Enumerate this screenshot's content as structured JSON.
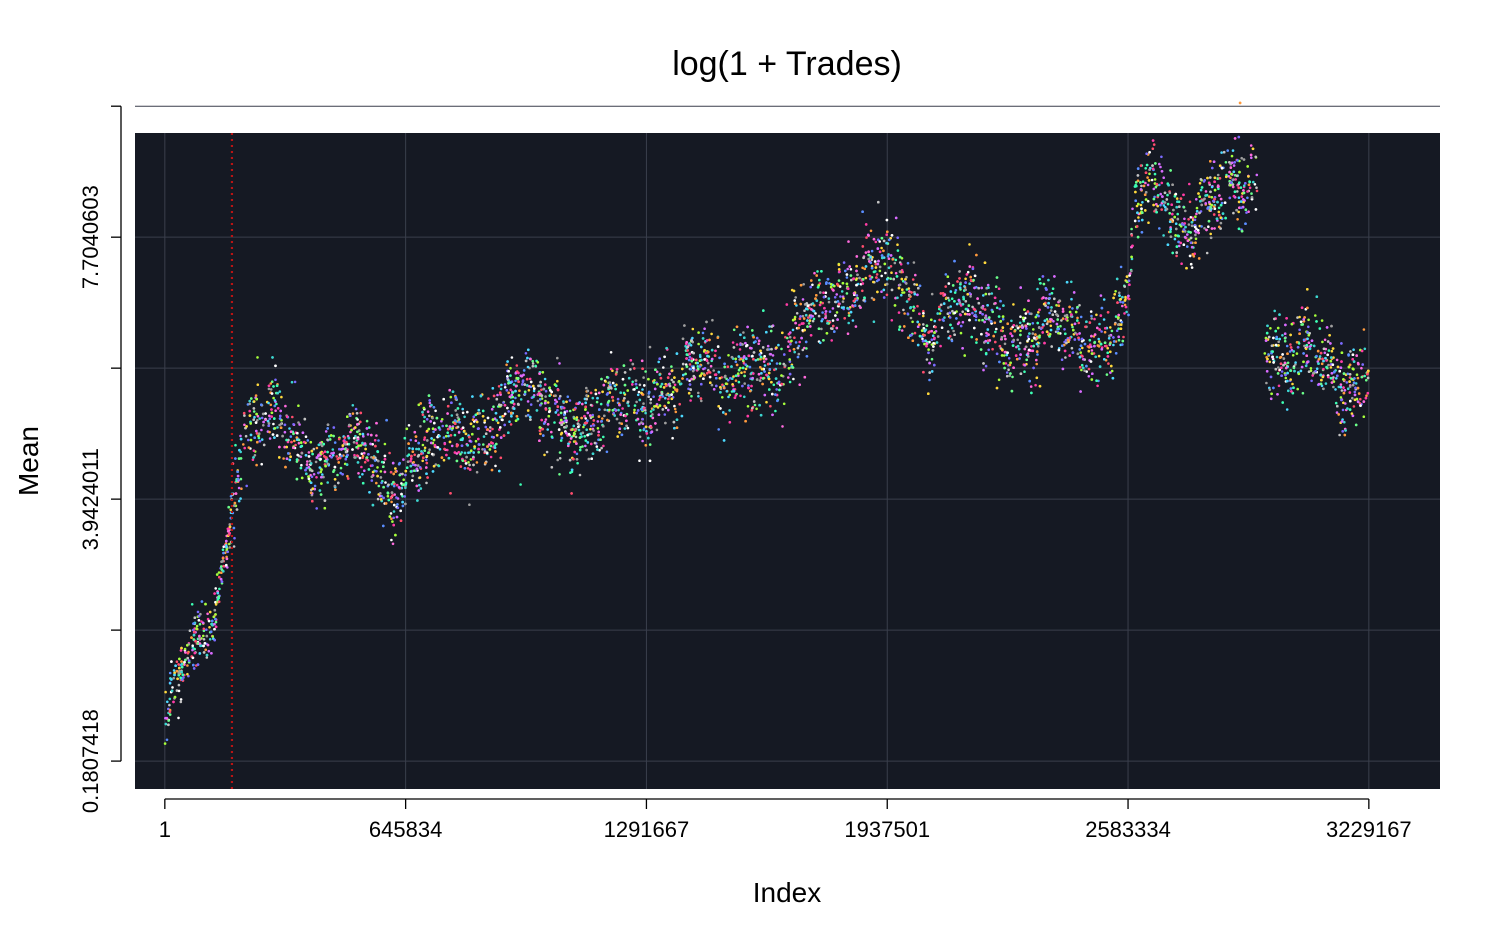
{
  "chart_data": {
    "type": "scatter",
    "title": "log(1 + Trades)",
    "xlabel": "Index",
    "ylabel": "Mean",
    "xlim": [
      -80000,
      3420000
    ],
    "ylim": [
      -0.22,
      9.2
    ],
    "x_ticks": [
      1,
      645834,
      1291667,
      1937501,
      2583334,
      3229167
    ],
    "x_tick_labels": [
      "1",
      "645834",
      "1291667",
      "1937501",
      "2583334",
      "3229167"
    ],
    "y_ticks": [
      0.1807418,
      2.0615715,
      3.9424011,
      5.8232307,
      7.7040603,
      9.58489
    ],
    "y_tick_labels": [
      "0.1807418",
      "",
      "3.9424011",
      "",
      "7.7040603",
      ""
    ],
    "grid": true,
    "plot_background": "#151923",
    "grid_color": "#3a3f4c",
    "vline": {
      "x": 180000,
      "color": "#b81414",
      "style": "dotted"
    },
    "series": [
      {
        "point_count": 6400,
        "color_palette": [
          "#ff4d6d",
          "#ffd93d",
          "#6bff8a",
          "#4dd9ff",
          "#7b6bff",
          "#ff6bde",
          "#c4c4c4",
          "#ffffff",
          "#3dffb4",
          "#ff9a3d",
          "#a6ff3d",
          "#5a8dff",
          "#d96bff",
          "#3dd6d0",
          "#ff3da6",
          "#9e9e9e"
        ],
        "trend": [
          [
            1,
            0.6
          ],
          [
            30000,
            1.2
          ],
          [
            60000,
            1.5
          ],
          [
            100000,
            1.8
          ],
          [
            130000,
            2.3
          ],
          [
            160000,
            3.2
          ],
          [
            180000,
            4.1
          ],
          [
            200000,
            4.6
          ],
          [
            240000,
            5.0
          ],
          [
            280000,
            5.0
          ],
          [
            320000,
            4.8
          ],
          [
            380000,
            4.7
          ],
          [
            440000,
            4.6
          ],
          [
            500000,
            4.6
          ],
          [
            560000,
            4.4
          ],
          [
            600000,
            4.2
          ],
          [
            630000,
            4.1
          ],
          [
            660000,
            4.8
          ],
          [
            720000,
            4.7
          ],
          [
            800000,
            4.7
          ],
          [
            880000,
            5.2
          ],
          [
            950000,
            5.5
          ],
          [
            1000000,
            5.2
          ],
          [
            1100000,
            5.1
          ],
          [
            1200000,
            5.1
          ],
          [
            1280000,
            5.3
          ],
          [
            1350000,
            5.7
          ],
          [
            1450000,
            5.8
          ],
          [
            1500000,
            5.5
          ],
          [
            1560000,
            6.1
          ],
          [
            1600000,
            6.0
          ],
          [
            1660000,
            5.6
          ],
          [
            1700000,
            6.3
          ],
          [
            1780000,
            6.9
          ],
          [
            1850000,
            7.1
          ],
          [
            1937501,
            7.1
          ],
          [
            2000000,
            6.9
          ],
          [
            2050000,
            6.5
          ],
          [
            2120000,
            6.6
          ],
          [
            2200000,
            6.6
          ],
          [
            2280000,
            6.3
          ],
          [
            2350000,
            6.3
          ],
          [
            2450000,
            6.3
          ],
          [
            2550000,
            6.5
          ],
          [
            2583334,
            6.6
          ],
          [
            2600000,
            8.1
          ],
          [
            2680000,
            8.3
          ],
          [
            2750000,
            8.0
          ],
          [
            2850000,
            8.3
          ],
          [
            2930000,
            8.6
          ],
          [
            2950000,
            6.3
          ],
          [
            3020000,
            6.0
          ],
          [
            3100000,
            5.8
          ],
          [
            3160000,
            5.6
          ],
          [
            3229167,
            6.0
          ]
        ],
        "segment_breaks": [
          2583334,
          2930000
        ]
      }
    ]
  }
}
